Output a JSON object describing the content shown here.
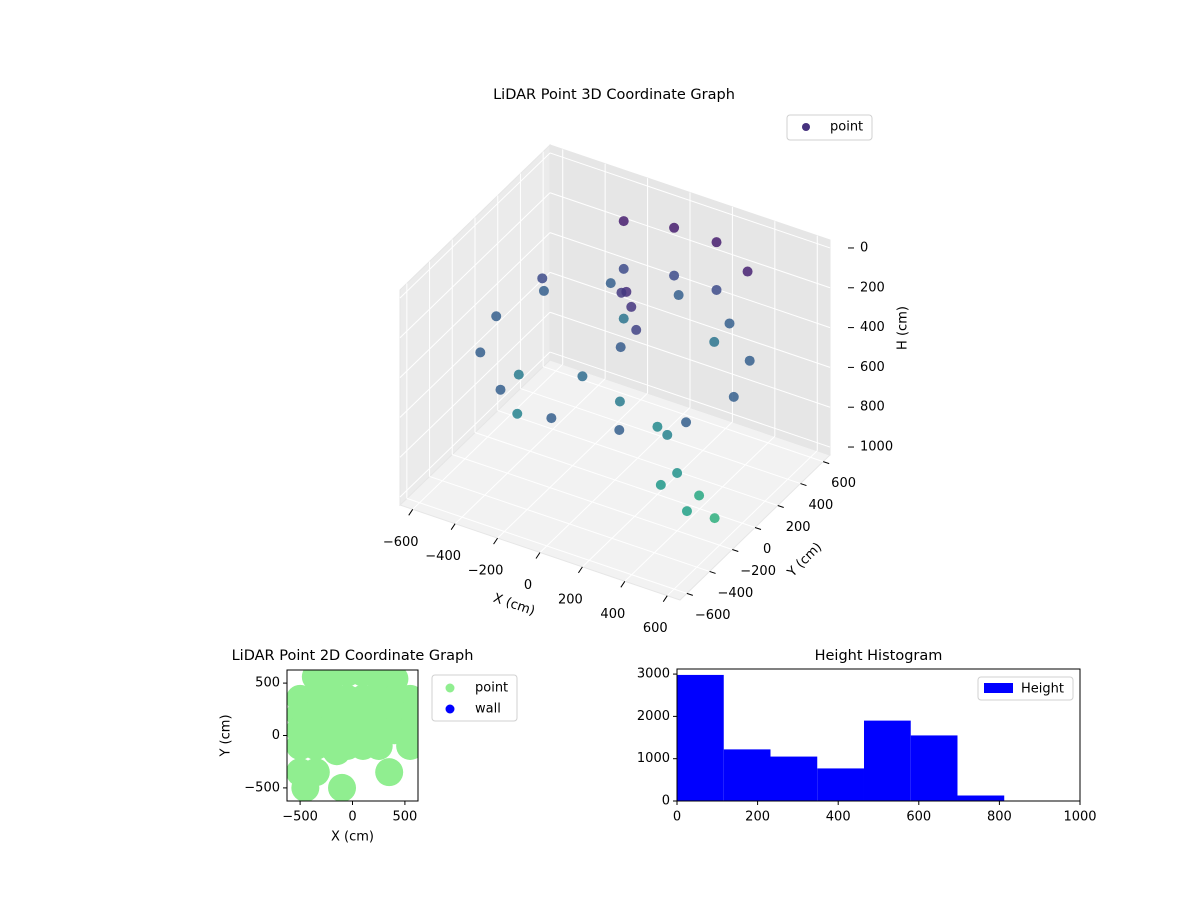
{
  "chart_data": [
    {
      "type": "scatter3d",
      "title": "LiDAR Point 3D Coordinate Graph",
      "xlabel": "X (cm)",
      "ylabel": "Y (cm)",
      "zlabel": "H (cm)",
      "xlim": [
        -660,
        660
      ],
      "ylim": [
        -660,
        660
      ],
      "zlim": [
        1040,
        -40
      ],
      "xticks": [
        {
          "value": -600,
          "label": "−600"
        },
        {
          "value": -400,
          "label": "−400"
        },
        {
          "value": -200,
          "label": "−200"
        },
        0,
        200,
        400,
        600
      ],
      "yticks": [
        {
          "value": -600,
          "label": "−600"
        },
        {
          "value": -400,
          "label": "−400"
        },
        {
          "value": -200,
          "label": "−200"
        },
        0,
        200,
        400,
        600
      ],
      "zticks": [
        0,
        200,
        400,
        600,
        800,
        1000
      ],
      "colormap": "viridis",
      "grid": true,
      "legend": "upper right",
      "series": [
        {
          "name": "point",
          "color": "#46327e",
          "x": [
            560,
            485,
            280,
            0,
            -280,
            -485,
            -560,
            -485,
            -280,
            0,
            280,
            485,
            -200,
            0,
            200,
            400,
            -200,
            0,
            200,
            -200,
            200,
            0,
            50,
            -50,
            100,
            0,
            -100,
            50,
            300,
            400,
            500,
            450,
            350,
            550,
            200,
            -450,
            -400,
            -300
          ],
          "y": [
            0,
            280,
            485,
            560,
            485,
            280,
            0,
            -280,
            -485,
            -560,
            -485,
            -280,
            450,
            520,
            520,
            420,
            450,
            520,
            520,
            450,
            500,
            100,
            50,
            150,
            0,
            50,
            -100,
            -50,
            -100,
            -200,
            -300,
            -100,
            -250,
            -150,
            0,
            200,
            -100,
            -300
          ],
          "z": [
            420,
            420,
            420,
            420,
            420,
            420,
            420,
            420,
            420,
            420,
            420,
            420,
            60,
            60,
            60,
            80,
            300,
            300,
            300,
            550,
            550,
            150,
            180,
            200,
            250,
            400,
            500,
            600,
            650,
            750,
            850,
            900,
            800,
            950,
            700,
            300,
            600,
            650
          ]
        }
      ]
    },
    {
      "type": "scatter",
      "title": "LiDAR Point 2D Coordinate Graph",
      "xlabel": "X (cm)",
      "ylabel": "Y (cm)",
      "xlim": [
        -625,
        625
      ],
      "ylim": [
        -625,
        625
      ],
      "xticks": [
        {
          "value": -500,
          "label": "−500"
        },
        0,
        500
      ],
      "yticks": [
        {
          "value": -500,
          "label": "−500"
        },
        0,
        500
      ],
      "legend": "outside right",
      "series": [
        {
          "name": "point",
          "color": "#90ee90",
          "x": [
            -350,
            -200,
            -50,
            100,
            250,
            400,
            -500,
            -350,
            -200,
            -50,
            100,
            250,
            400,
            550,
            -500,
            -350,
            -200,
            -50,
            100,
            250,
            400,
            550,
            -500,
            -350,
            -200,
            -50,
            100,
            250,
            400,
            550,
            -500,
            -350,
            -200,
            -50,
            100,
            250,
            550,
            -500,
            -350,
            -150,
            350,
            -450,
            -100
          ],
          "y": [
            560,
            560,
            600,
            600,
            560,
            540,
            350,
            350,
            350,
            350,
            350,
            350,
            350,
            350,
            200,
            200,
            200,
            200,
            200,
            200,
            200,
            200,
            50,
            50,
            50,
            50,
            50,
            50,
            50,
            50,
            -100,
            -100,
            -100,
            -100,
            -100,
            -100,
            -100,
            -350,
            -350,
            -150,
            -350,
            -500,
            -500
          ]
        },
        {
          "name": "wall",
          "color": "#0000ff",
          "x": [],
          "y": []
        }
      ]
    },
    {
      "type": "histogram",
      "title": "Height Histogram",
      "xlim": [
        0,
        1000
      ],
      "ylim": [
        0,
        3120
      ],
      "xticks": [
        0,
        200,
        400,
        600,
        800,
        1000
      ],
      "yticks": [
        0,
        1000,
        2000,
        3000
      ],
      "legend": "upper right",
      "bins": [
        0,
        116,
        232,
        348,
        464,
        580,
        696,
        812
      ],
      "series": [
        {
          "name": "Height",
          "color": "#0000ff",
          "values": [
            2980,
            1220,
            1050,
            770,
            1900,
            1550,
            130
          ]
        }
      ]
    }
  ]
}
